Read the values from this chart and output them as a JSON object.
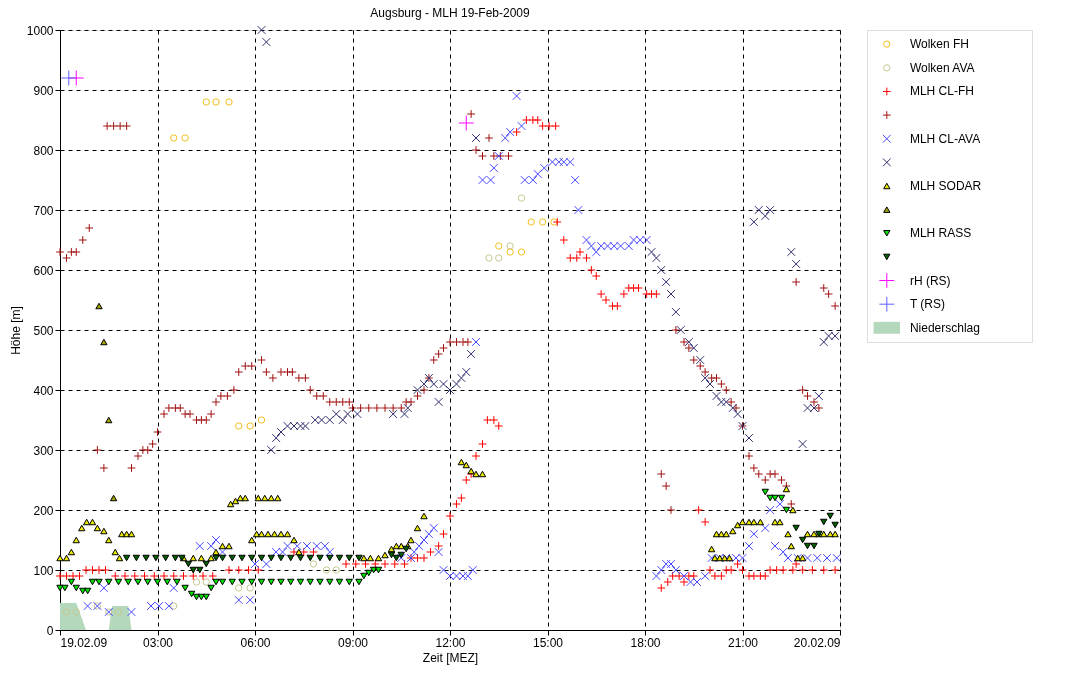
{
  "chart_data": {
    "type": "scatter",
    "title": "Augsburg - MLH 19-Feb-2009",
    "xlabel": "Zeit [MEZ]",
    "ylabel": "Höhe [m]",
    "xlim": [
      0,
      24
    ],
    "ylim": [
      0,
      1000
    ],
    "xticks": [
      {
        "value": 0,
        "label": "19.02.09"
      },
      {
        "value": 3,
        "label": "03:00"
      },
      {
        "value": 6,
        "label": "06:00"
      },
      {
        "value": 9,
        "label": "09:00"
      },
      {
        "value": 12,
        "label": "12:00"
      },
      {
        "value": 15,
        "label": "15:00"
      },
      {
        "value": 18,
        "label": "18:00"
      },
      {
        "value": 21,
        "label": "21:00"
      },
      {
        "value": 24,
        "label": "20.02.09"
      }
    ],
    "yticks": [
      0,
      100,
      200,
      300,
      400,
      500,
      600,
      700,
      800,
      900,
      1000
    ],
    "grid": true,
    "legend": "right",
    "series": [
      {
        "name": "Wolken FH",
        "color": "#f0c020",
        "marker": "circle",
        "x": [
          3.5,
          3.85,
          4.5,
          4.8,
          5.2,
          5.5,
          5.85,
          6.2,
          13.5,
          13.85,
          14.2,
          14.5,
          14.85,
          15.2
        ],
        "values": [
          820,
          820,
          880,
          880,
          880,
          340,
          340,
          350,
          640,
          630,
          630,
          680,
          680,
          680
        ]
      },
      {
        "name": "Wolken AVA",
        "color": "#c8c890",
        "marker": "circle",
        "x": [
          0.2,
          0.5,
          1.15,
          1.5,
          1.8,
          3.5,
          4.2,
          4.5,
          5.5,
          5.85,
          7.8,
          8.2,
          8.5,
          13.2,
          13.5,
          13.85,
          14.2
        ],
        "values": [
          30,
          30,
          40,
          30,
          30,
          40,
          80,
          80,
          70,
          70,
          110,
          100,
          100,
          620,
          620,
          640,
          720
        ]
      },
      {
        "name": "MLH CL-FH",
        "color": "#ff0000",
        "marker": "cross",
        "x": [
          0,
          0.2,
          0.4,
          0.6,
          0.8,
          1.0,
          1.2,
          1.4,
          1.7,
          2.0,
          2.3,
          2.6,
          2.9,
          3.2,
          3.5,
          3.8,
          4.1,
          4.4,
          4.7,
          5.2,
          5.5,
          5.8,
          6.1,
          7.2,
          7.5,
          7.8,
          8.8,
          9.1,
          9.4,
          9.7,
          10.0,
          10.3,
          10.6,
          10.8,
          11.0,
          11.2,
          11.4,
          11.65,
          11.8,
          12.0,
          12.2,
          12.35,
          12.5,
          12.65,
          12.8,
          13.0,
          13.15,
          13.35,
          13.5,
          14.05,
          14.35,
          14.55,
          14.7,
          14.85,
          15.05,
          15.25,
          15.3,
          15.5,
          15.7,
          15.9,
          16.0,
          16.2,
          16.35,
          16.5,
          16.65,
          16.8,
          17.0,
          17.15,
          17.35,
          17.5,
          17.65,
          17.8,
          18.05,
          18.2,
          18.35,
          18.5,
          18.7,
          18.85,
          19.05,
          19.2,
          19.35,
          19.5,
          19.65,
          19.85,
          20.0,
          20.15,
          20.35,
          20.5,
          20.65,
          20.85,
          21.0,
          21.2,
          21.35,
          21.55,
          21.7,
          21.85,
          22.05,
          22.25,
          22.55,
          22.65,
          22.85,
          23.15,
          23.5,
          23.85
        ],
        "values": [
          90,
          90,
          90,
          90,
          100,
          100,
          100,
          100,
          90,
          90,
          90,
          90,
          90,
          90,
          90,
          90,
          90,
          90,
          90,
          100,
          100,
          100,
          100,
          130,
          130,
          130,
          110,
          110,
          110,
          110,
          110,
          110,
          110,
          120,
          120,
          120,
          130,
          140,
          160,
          190,
          210,
          220,
          250,
          260,
          290,
          310,
          350,
          350,
          340,
          830,
          850,
          850,
          850,
          840,
          840,
          840,
          680,
          650,
          620,
          620,
          630,
          620,
          600,
          590,
          560,
          550,
          540,
          540,
          560,
          570,
          570,
          570,
          560,
          560,
          560,
          70,
          80,
          90,
          90,
          80,
          90,
          90,
          200,
          180,
          100,
          90,
          90,
          100,
          100,
          110,
          100,
          90,
          90,
          90,
          90,
          100,
          100,
          100,
          100,
          110,
          100,
          100,
          100,
          100
        ]
      },
      {
        "color": "#a01010",
        "marker": "cross",
        "x": [
          0,
          0.2,
          0.35,
          0.5,
          0.7,
          0.9,
          1.15,
          1.35,
          1.45,
          1.65,
          1.85,
          2.05,
          2.2,
          2.4,
          2.55,
          2.7,
          2.85,
          3.0,
          3.2,
          3.35,
          3.55,
          3.7,
          3.85,
          4.0,
          4.2,
          4.35,
          4.5,
          4.65,
          4.8,
          4.95,
          5.15,
          5.35,
          5.5,
          5.7,
          5.9,
          6.2,
          6.35,
          6.55,
          6.8,
          7.0,
          7.15,
          7.35,
          7.55,
          7.7,
          7.9,
          8.1,
          8.3,
          8.5,
          8.7,
          8.9,
          9.0,
          9.25,
          9.5,
          9.75,
          10.0,
          10.25,
          10.5,
          10.65,
          10.8,
          11.0,
          11.2,
          11.35,
          11.5,
          11.65,
          11.8,
          12.0,
          12.2,
          12.4,
          12.55,
          12.65,
          12.8,
          13.0,
          13.2,
          13.35,
          13.55,
          13.8,
          18.5,
          18.65,
          18.8,
          18.95,
          19.2,
          19.35,
          19.5,
          19.7,
          19.85,
          20.05,
          20.2,
          20.35,
          20.5,
          20.65,
          20.8,
          21.0,
          21.2,
          21.35,
          21.5,
          21.7,
          21.85,
          22.0,
          22.2,
          22.35,
          22.5,
          22.65,
          22.85,
          23.0,
          23.2,
          23.35,
          23.5,
          23.65,
          23.85
        ],
        "values": [
          630,
          620,
          630,
          630,
          650,
          670,
          300,
          270,
          840,
          840,
          840,
          840,
          270,
          290,
          300,
          300,
          310,
          330,
          360,
          370,
          370,
          370,
          360,
          360,
          350,
          350,
          350,
          360,
          380,
          390,
          390,
          400,
          430,
          440,
          440,
          450,
          430,
          420,
          430,
          430,
          430,
          420,
          420,
          400,
          390,
          390,
          380,
          380,
          380,
          380,
          370,
          370,
          370,
          370,
          370,
          370,
          370,
          380,
          380,
          390,
          400,
          420,
          450,
          460,
          470,
          480,
          480,
          480,
          480,
          860,
          800,
          790,
          820,
          790,
          790,
          790,
          260,
          240,
          200,
          500,
          480,
          470,
          450,
          440,
          430,
          420,
          420,
          410,
          400,
          380,
          370,
          340,
          290,
          270,
          260,
          250,
          260,
          260,
          250,
          240,
          210,
          580,
          400,
          390,
          380,
          370,
          570,
          560,
          540
        ]
      },
      {
        "name": "MLH CL-AVA",
        "color": "#4848ff",
        "marker": "x",
        "x": [
          0.85,
          1.15,
          1.35,
          1.5,
          2.2,
          2.8,
          3.05,
          3.35,
          3.5,
          4.3,
          4.65,
          4.8,
          5.0,
          5.5,
          5.85,
          6.0,
          6.35,
          6.65,
          6.85,
          7.0,
          7.3,
          7.6,
          7.9,
          8.15,
          8.3,
          10.5,
          10.8,
          10.9,
          11.05,
          11.2,
          11.35,
          11.5,
          11.65,
          11.8,
          12.0,
          12.2,
          12.4,
          12.55,
          12.7,
          12.8,
          13.0,
          13.25,
          13.35,
          13.5,
          13.7,
          13.85,
          14.05,
          14.2,
          14.3,
          14.55,
          14.7,
          14.9,
          15.15,
          15.35,
          15.5,
          15.7,
          15.85,
          15.95,
          16.2,
          16.35,
          16.5,
          16.65,
          16.85,
          17.05,
          17.25,
          17.5,
          17.65,
          17.85,
          18.05,
          18.35,
          18.5,
          18.65,
          18.8,
          18.95,
          19.2,
          19.4,
          19.6,
          19.85,
          20.05,
          20.3,
          20.5,
          20.8,
          21.0,
          21.2,
          21.35,
          21.7,
          21.85,
          22.0,
          22.15,
          22.25,
          22.4,
          22.7,
          23.0,
          23.3,
          23.6,
          23.9
        ],
        "values": [
          40,
          40,
          70,
          30,
          30,
          40,
          40,
          40,
          70,
          140,
          140,
          150,
          130,
          50,
          50,
          110,
          110,
          130,
          130,
          140,
          140,
          140,
          140,
          140,
          130,
          120,
          120,
          130,
          140,
          150,
          160,
          170,
          130,
          100,
          90,
          90,
          90,
          90,
          100,
          480,
          750,
          750,
          770,
          790,
          820,
          830,
          890,
          840,
          750,
          750,
          760,
          770,
          780,
          780,
          780,
          780,
          750,
          700,
          650,
          640,
          630,
          640,
          640,
          640,
          640,
          640,
          650,
          650,
          650,
          90,
          100,
          110,
          110,
          100,
          90,
          80,
          80,
          90,
          120,
          120,
          120,
          120,
          120,
          140,
          160,
          170,
          200,
          140,
          210,
          130,
          120,
          120,
          120,
          120,
          120,
          120
        ]
      },
      {
        "color": "#303070",
        "marker": "x",
        "x": [
          6.2,
          6.35,
          6.5,
          6.65,
          6.8,
          7.0,
          7.2,
          7.4,
          7.55,
          7.85,
          8.05,
          8.3,
          8.5,
          8.7,
          8.85,
          9.15,
          10.25,
          10.6,
          10.7,
          11.0,
          11.2,
          11.35,
          11.5,
          11.65,
          11.8,
          12.0,
          12.2,
          12.35,
          12.5,
          12.65,
          12.8,
          18.2,
          18.35,
          18.5,
          18.65,
          18.8,
          18.95,
          19.1,
          19.35,
          19.5,
          19.7,
          19.85,
          20.0,
          20.2,
          20.35,
          20.5,
          20.7,
          20.85,
          21.0,
          21.2,
          21.35,
          21.5,
          21.7,
          21.85,
          22.5,
          22.65,
          22.85,
          23.0,
          23.2,
          23.35,
          23.5,
          23.65,
          23.85
        ],
        "values": [
          1000,
          980,
          300,
          320,
          330,
          340,
          340,
          340,
          340,
          350,
          350,
          350,
          360,
          350,
          360,
          360,
          360,
          360,
          370,
          400,
          410,
          420,
          410,
          380,
          410,
          400,
          410,
          420,
          430,
          460,
          820,
          630,
          620,
          600,
          580,
          560,
          530,
          500,
          480,
          470,
          450,
          420,
          410,
          390,
          380,
          380,
          370,
          360,
          340,
          320,
          680,
          700,
          690,
          700,
          630,
          610,
          310,
          370,
          370,
          390,
          480,
          490,
          490
        ]
      },
      {
        "name": "MLH SODAR",
        "color": "#e8e800",
        "marker": "triangle",
        "x": [
          0,
          0.2,
          0.35,
          0.5,
          0.67,
          0.82,
          1.0,
          1.15,
          1.35,
          1.5,
          1.7,
          1.83,
          1.9,
          2.05,
          2.2,
          3.8,
          4.1,
          4.35,
          4.65,
          4.8,
          5.0,
          5.2,
          5.25,
          5.4,
          5.55,
          5.7,
          5.9,
          6.05,
          6.1,
          6.2,
          6.3,
          6.4,
          6.5,
          6.6,
          6.7,
          6.8,
          7.0,
          7.2,
          7.35,
          9.35,
          9.55,
          9.8,
          10.0,
          10.2,
          10.35,
          10.5,
          10.7,
          10.8,
          11.0,
          11.2,
          12.35,
          12.5,
          12.65,
          12.8,
          13.0,
          20.05,
          20.15,
          20.2,
          20.3,
          20.35,
          20.45,
          20.5,
          20.6,
          20.7,
          20.85,
          21.0,
          21.2,
          21.35,
          21.55,
          22.0,
          22.15,
          22.35,
          22.4,
          22.5,
          22.55,
          22.7,
          22.85,
          23.0,
          23.2,
          23.35,
          23.5,
          23.7,
          23.85
        ],
        "values": [
          120,
          120,
          130,
          150,
          170,
          180,
          180,
          170,
          165,
          150,
          130,
          120,
          160,
          160,
          160,
          120,
          120,
          120,
          120,
          130,
          140,
          140,
          210,
          215,
          220,
          220,
          150,
          160,
          220,
          160,
          220,
          160,
          220,
          160,
          220,
          160,
          160,
          150,
          130,
          120,
          120,
          120,
          125,
          135,
          140,
          140,
          140,
          150,
          170,
          190,
          280,
          275,
          265,
          260,
          260,
          135,
          120,
          160,
          120,
          160,
          120,
          160,
          120,
          165,
          175,
          180,
          180,
          180,
          180,
          180,
          180,
          235,
          160,
          140,
          200,
          120,
          120,
          160,
          160,
          160,
          160,
          160,
          160
        ]
      },
      {
        "color": "#a0a000",
        "marker": "triangle",
        "x": [
          1.2,
          1.35,
          1.5,
          1.65
        ],
        "values": [
          540,
          480,
          350,
          220
        ]
      },
      {
        "name": "MLH RASS",
        "color": "#00e000",
        "marker": "triangle-down",
        "x": [
          0,
          0.15,
          0.35,
          0.5,
          0.7,
          0.85,
          1.0,
          1.2,
          1.5,
          1.8,
          2.1,
          2.4,
          2.7,
          3.0,
          3.3,
          3.6,
          3.85,
          4.05,
          4.2,
          4.35,
          4.5,
          4.65,
          4.8,
          5.0,
          5.3,
          5.6,
          5.9,
          6.2,
          6.5,
          6.8,
          7.1,
          7.4,
          7.7,
          8.0,
          8.3,
          8.6,
          8.9,
          9.2,
          9.35,
          9.5,
          9.65,
          9.8,
          21.7,
          21.85,
          22.0,
          22.2,
          22.35
        ],
        "values": [
          70,
          70,
          80,
          70,
          65,
          65,
          80,
          80,
          80,
          80,
          80,
          80,
          80,
          80,
          80,
          80,
          70,
          60,
          55,
          55,
          55,
          70,
          80,
          80,
          80,
          80,
          80,
          80,
          80,
          80,
          80,
          80,
          80,
          80,
          80,
          80,
          80,
          80,
          90,
          95,
          100,
          100,
          230,
          220,
          220,
          220,
          200
        ]
      },
      {
        "color": "#006000",
        "marker": "triangle-down",
        "x": [
          2.05,
          2.35,
          2.65,
          2.95,
          3.25,
          3.55,
          3.75,
          3.95,
          4.1,
          4.3,
          4.5,
          4.8,
          5.0,
          5.3,
          5.6,
          5.9,
          6.2,
          6.5,
          6.8,
          7.1,
          7.4,
          7.7,
          8.0,
          8.3,
          8.6,
          8.9,
          9.2,
          10.2,
          10.35,
          10.5,
          10.65,
          22.65,
          22.85,
          23.0,
          23.2,
          23.35,
          23.5,
          23.7,
          23.85
        ],
        "values": [
          120,
          120,
          120,
          120,
          120,
          120,
          120,
          110,
          100,
          100,
          110,
          120,
          120,
          120,
          120,
          120,
          120,
          120,
          120,
          120,
          120,
          120,
          120,
          120,
          120,
          120,
          120,
          125,
          120,
          125,
          135,
          170,
          150,
          140,
          140,
          160,
          180,
          190,
          175
        ]
      },
      {
        "name": "rH (RS)",
        "color": "#ff00ff",
        "marker": "cross",
        "x": [
          0.5,
          12.5
        ],
        "values": [
          920,
          845
        ]
      },
      {
        "name": "T (RS)",
        "color": "#6060ff",
        "marker": "cross",
        "x": [
          0.27
        ],
        "values": [
          920
        ]
      },
      {
        "name": "Niederschlag",
        "type": "area",
        "color": "#b4d8bc",
        "x": [
          0,
          0.5,
          0.8,
          1.5,
          1.6,
          2.1,
          2.2
        ],
        "values": [
          45,
          45,
          0,
          0,
          40,
          40,
          0
        ]
      }
    ]
  }
}
